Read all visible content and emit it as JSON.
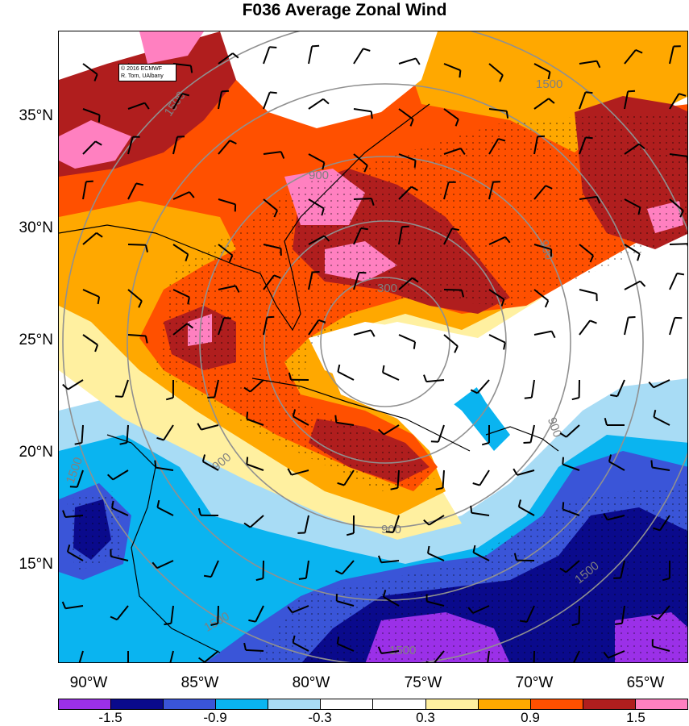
{
  "title": "F036 Average Zonal Wind",
  "credit": [
    "© 2016 ECMWF",
    "R. Torn, UAlbany"
  ],
  "lat_labels": [
    "35°N",
    "30°N",
    "25°N",
    "20°N",
    "15°N"
  ],
  "lon_labels": [
    "90°W",
    "85°W",
    "80°W",
    "75°W",
    "70°W",
    "65°W"
  ],
  "contour_labels": [
    "300",
    "900",
    "900",
    "900",
    "900",
    "1500",
    "1500",
    "1500",
    "900",
    "1500",
    "1500",
    "1500"
  ],
  "colorbar": {
    "colors": [
      "#9b30e8",
      "#0a0a8c",
      "#3a55d8",
      "#0ab4f0",
      "#a8dcf5",
      "#ffffff",
      "#ffffff",
      "#fff0a0",
      "#ffa800",
      "#ff5000",
      "#b01e1e",
      "#ff80c0"
    ],
    "labels": [
      "-1.5",
      "-0.9",
      "-0.3",
      "0.3",
      "0.9",
      "1.5"
    ]
  }
}
